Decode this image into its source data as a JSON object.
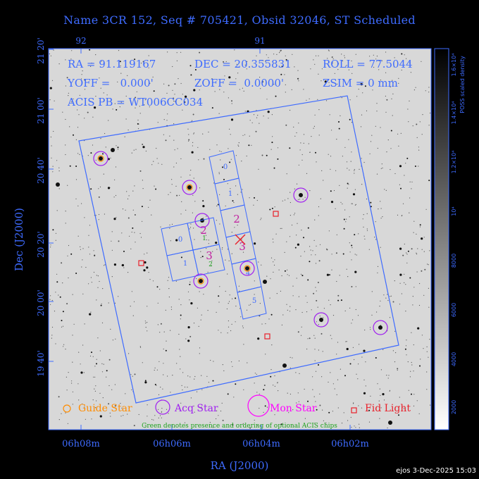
{
  "title": "Name 3CR 152, Seq # 705421, Obsid 32046, ST Scheduled",
  "params": {
    "ra": "RA = 91.119167",
    "dec": "DEC = 20.355831",
    "roll": "ROLL = 77.5044",
    "yoff": "YOFF =   0.000'",
    "zoff": "ZOFF =  0.0000'",
    "zsim": "ZSIM = 0 mm",
    "acis_pb": "ACIS PB = WT006CC034"
  },
  "axes": {
    "top_ticks": [
      "92",
      "91"
    ],
    "bottom_ticks": [
      "06h08m",
      "06h06m",
      "06h04m",
      "06h02m"
    ],
    "left_ticks": [
      "21 20'",
      "21 00'",
      "20 40'",
      "20 20'",
      "20 00'",
      "19 40'"
    ],
    "xlabel": "RA (J2000)",
    "ylabel": "Dec (J2000)"
  },
  "colorbar": {
    "label": "POSS scaled density",
    "ticks": [
      "2000",
      "4000",
      "6000",
      "8000",
      "10⁴",
      "1.2×10⁴",
      "1.4×10⁴",
      "1.6×10⁴"
    ]
  },
  "chips": {
    "s_chips": [
      "0",
      "1",
      "2",
      "3",
      "4",
      "5"
    ],
    "i_chips": [
      "0",
      "1"
    ],
    "optional_i": [
      "2",
      "3"
    ],
    "optional_s": [
      "2",
      "3"
    ],
    "optional_i_green": [
      "1",
      "2"
    ]
  },
  "legend": {
    "guide": "Guide Star",
    "acq": "Acq Star",
    "mon": "Mon Star",
    "fid": "Fid Light",
    "note": "Green denotes presence and ordering of optional ACIS chips"
  },
  "colors": {
    "blue": "#3e6bff",
    "guide": "#ff8c00",
    "acq": "#a020f0",
    "mon": "#ff00ff",
    "fid": "#e8202a",
    "green": "#1ea21e"
  },
  "footer": "ejos  3-Dec-2025 15:03"
}
